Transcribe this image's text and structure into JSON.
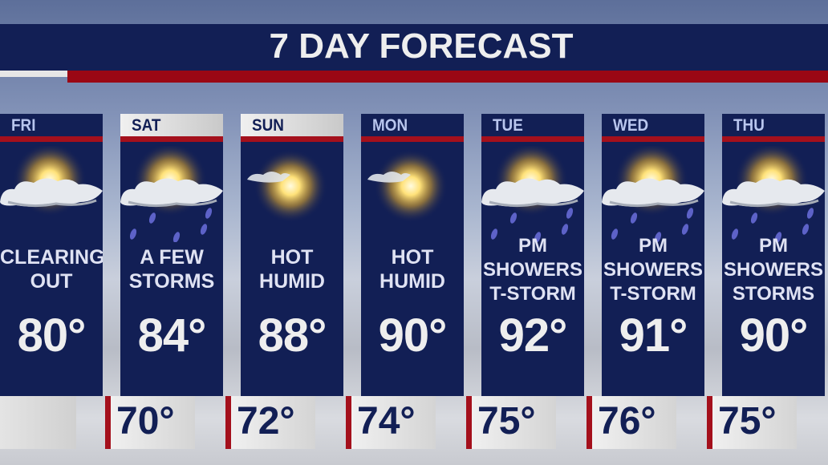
{
  "header": {
    "title": "7 DAY FORECAST"
  },
  "colors": {
    "navy": "#121f55",
    "red": "#9a0714",
    "text_light": "#eeeeee"
  },
  "days": [
    {
      "day": "FRI",
      "cond": [
        "CLEARING",
        "OUT"
      ],
      "high": "80°",
      "low": null,
      "icon": "sun-cloud-icon"
    },
    {
      "day": "SAT",
      "cond": [
        "A FEW",
        "STORMS"
      ],
      "high": "84°",
      "low": "70°",
      "icon": "sun-cloud-rain-icon"
    },
    {
      "day": "SUN",
      "cond": [
        "HOT",
        "HUMID"
      ],
      "high": "88°",
      "low": "72°",
      "icon": "sun-icon"
    },
    {
      "day": "MON",
      "cond": [
        "HOT",
        "HUMID"
      ],
      "high": "90°",
      "low": "74°",
      "icon": "sun-icon"
    },
    {
      "day": "TUE",
      "cond": [
        "PM",
        "SHOWERS",
        "T-STORM"
      ],
      "high": "92°",
      "low": "75°",
      "icon": "sun-cloud-rain-icon"
    },
    {
      "day": "WED",
      "cond": [
        "PM",
        "SHOWERS",
        "T-STORM"
      ],
      "high": "91°",
      "low": "76°",
      "icon": "sun-cloud-rain-icon"
    },
    {
      "day": "THU",
      "cond": [
        "PM",
        "SHOWERS",
        "STORMS"
      ],
      "high": "90°",
      "low": "75°",
      "icon": "sun-cloud-rain-icon"
    }
  ]
}
